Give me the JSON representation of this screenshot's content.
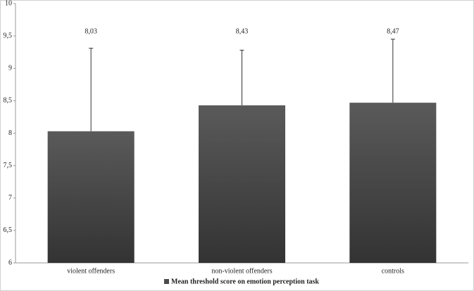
{
  "chart_data": {
    "type": "bar",
    "categories": [
      "violent offenders",
      "non-violent offenders",
      "controls"
    ],
    "series": [
      {
        "name": "Mean threshold score on emotion perception task",
        "color": "#4a4a4a",
        "values": [
          8.03,
          8.43,
          8.47
        ],
        "value_labels": [
          "8,03",
          "8,43",
          "8,47"
        ],
        "errors": [
          1.28,
          0.85,
          0.98
        ]
      }
    ],
    "ylim": [
      6,
      10
    ],
    "yticks": [
      6,
      {
        "value": 6.5,
        "label": "6,5"
      },
      7,
      {
        "value": 7.5,
        "label": "7,5"
      },
      8,
      {
        "value": 8.5,
        "label": "8,5"
      },
      9,
      {
        "value": 9.5,
        "label": "9,5"
      },
      10
    ],
    "grid": false,
    "legend": "bottom"
  }
}
